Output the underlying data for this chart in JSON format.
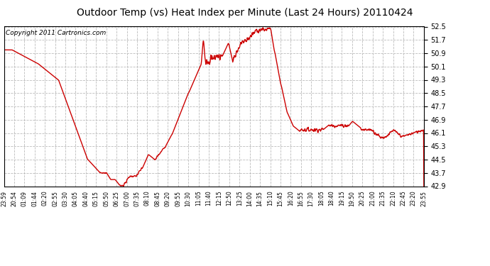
{
  "title": "Outdoor Temp (vs) Heat Index per Minute (Last 24 Hours) 20110424",
  "copyright": "Copyright 2011 Cartronics.com",
  "line_color": "#cc0000",
  "bg_color": "#ffffff",
  "plot_bg_color": "#ffffff",
  "grid_color": "#bbbbbb",
  "ylim": [
    42.9,
    52.5
  ],
  "yticks": [
    42.9,
    43.7,
    44.5,
    45.3,
    46.1,
    46.9,
    47.7,
    48.5,
    49.3,
    50.1,
    50.9,
    51.7,
    52.5
  ],
  "xtick_labels": [
    "23:59",
    "20:54",
    "01:09",
    "01:44",
    "02:20",
    "02:55",
    "03:30",
    "04:05",
    "04:40",
    "05:15",
    "05:50",
    "06:25",
    "07:00",
    "07:35",
    "08:10",
    "08:45",
    "09:20",
    "09:55",
    "10:30",
    "11:05",
    "11:40",
    "12:15",
    "12:50",
    "13:25",
    "14:00",
    "14:35",
    "15:10",
    "15:45",
    "16:20",
    "16:55",
    "17:30",
    "18:05",
    "18:40",
    "19:15",
    "19:50",
    "20:25",
    "21:00",
    "21:35",
    "22:10",
    "22:45",
    "23:20",
    "23:55"
  ],
  "line_width": 1.0,
  "title_fontsize": 10,
  "copyright_fontsize": 6.5,
  "ylabel_fontsize": 7,
  "xlabel_fontsize": 5.5
}
